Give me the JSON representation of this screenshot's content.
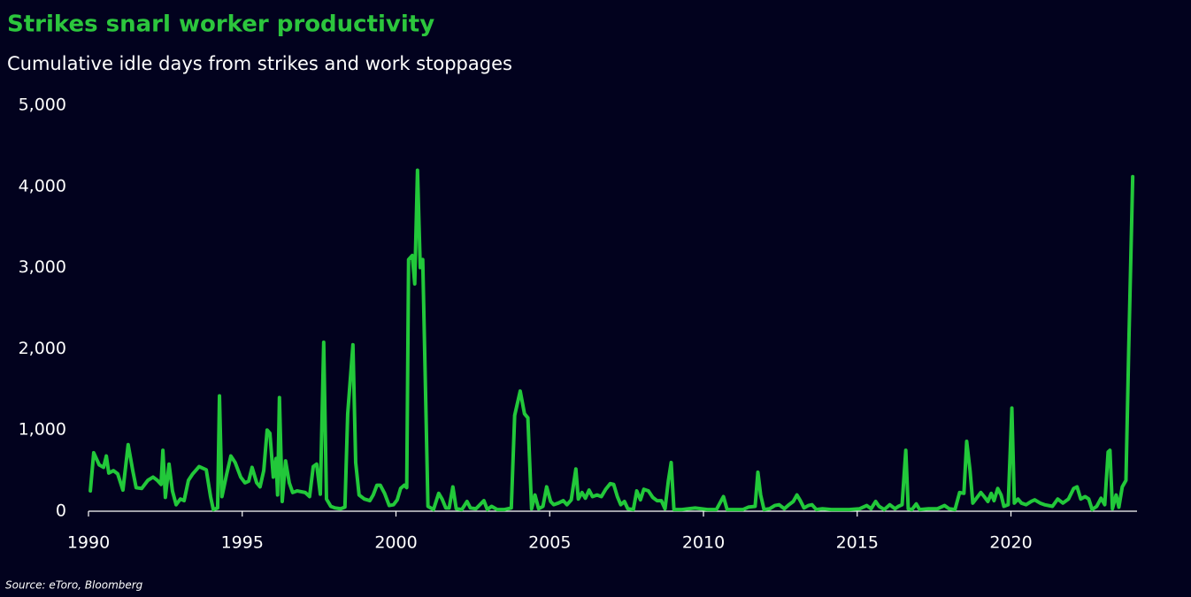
{
  "chart_data": {
    "type": "line",
    "title": "Strikes snarl worker productivity",
    "subtitle": "Cumulative idle days from strikes and work stoppages",
    "source": "Source: eToro, Bloomberg",
    "xlim": [
      1990,
      2024.1
    ],
    "xticks": [
      1990,
      1995,
      2000,
      2005,
      2010,
      2015,
      2020
    ],
    "ylim": [
      0,
      5000
    ],
    "yticks": [
      0,
      {
        "value": 1000,
        "label": "1,000"
      },
      {
        "value": 2000,
        "label": "2,000"
      },
      {
        "value": 3000,
        "label": "3,000"
      },
      {
        "value": 4000,
        "label": "4,000"
      },
      {
        "value": 5000,
        "label": "5,000"
      }
    ],
    "grid": false,
    "x": [
      1990.06,
      1990.17,
      1990.35,
      1990.49,
      1990.58,
      1990.66,
      1990.81,
      1990.95,
      1991.12,
      1991.29,
      1991.44,
      1991.55,
      1991.73,
      1991.93,
      1992.1,
      1992.24,
      1992.36,
      1992.42,
      1992.5,
      1992.62,
      1992.73,
      1992.85,
      1992.99,
      1993.11,
      1993.25,
      1993.39,
      1993.6,
      1993.83,
      1993.97,
      1994.06,
      1994.2,
      1994.26,
      1994.34,
      1994.49,
      1994.63,
      1994.77,
      1994.95,
      1995.09,
      1995.21,
      1995.32,
      1995.47,
      1995.58,
      1995.7,
      1995.81,
      1995.9,
      1996.01,
      1996.1,
      1996.15,
      1996.21,
      1996.3,
      1996.41,
      1996.53,
      1996.64,
      1996.79,
      1997.05,
      1997.19,
      1997.31,
      1997.42,
      1997.54,
      1997.65,
      1997.74,
      1997.88,
      1998.02,
      1998.2,
      1998.34,
      1998.43,
      1998.6,
      1998.69,
      1998.8,
      1998.97,
      1999.15,
      1999.26,
      1999.38,
      1999.49,
      1999.63,
      1999.78,
      1999.92,
      2000.04,
      2000.15,
      2000.27,
      2000.35,
      2000.41,
      2000.53,
      2000.61,
      2000.7,
      2000.79,
      2000.87,
      2000.96,
      2001.04,
      2001.22,
      2001.39,
      2001.5,
      2001.62,
      2001.73,
      2001.85,
      2001.96,
      2002.14,
      2002.31,
      2002.42,
      2002.6,
      2002.86,
      2002.97,
      2003.11,
      2003.29,
      2003.52,
      2003.75,
      2003.86,
      2004.04,
      2004.18,
      2004.29,
      2004.41,
      2004.52,
      2004.64,
      2004.78,
      2004.9,
      2005.03,
      2005.13,
      2005.28,
      2005.44,
      2005.56,
      2005.7,
      2005.85,
      2005.93,
      2006.05,
      2006.16,
      2006.28,
      2006.39,
      2006.54,
      2006.68,
      2006.82,
      2006.97,
      2007.08,
      2007.2,
      2007.31,
      2007.43,
      2007.54,
      2007.72,
      2007.83,
      2007.95,
      2008.06,
      2008.21,
      2008.35,
      2008.49,
      2008.63,
      2008.75,
      2008.86,
      2008.95,
      2009.04,
      2009.3,
      2009.73,
      2010.13,
      2010.42,
      2010.65,
      2010.77,
      2010.99,
      2011.28,
      2011.46,
      2011.68,
      2011.77,
      2011.86,
      2011.97,
      2012.15,
      2012.32,
      2012.46,
      2012.63,
      2012.78,
      2012.92,
      2013.04,
      2013.15,
      2013.27,
      2013.41,
      2013.53,
      2013.67,
      2013.87,
      2014.16,
      2014.74,
      2015.08,
      2015.31,
      2015.45,
      2015.6,
      2015.71,
      2015.88,
      2016.06,
      2016.23,
      2016.34,
      2016.46,
      2016.58,
      2016.66,
      2016.78,
      2016.92,
      2017.03,
      2017.32,
      2017.61,
      2017.84,
      2017.99,
      2018.18,
      2018.33,
      2018.47,
      2018.56,
      2018.67,
      2018.76,
      2018.88,
      2019.02,
      2019.13,
      2019.25,
      2019.36,
      2019.45,
      2019.57,
      2019.68,
      2019.77,
      2019.91,
      2020.03,
      2020.11,
      2020.23,
      2020.34,
      2020.49,
      2020.66,
      2020.77,
      2020.95,
      2021.09,
      2021.35,
      2021.52,
      2021.69,
      2021.87,
      2022.04,
      2022.15,
      2022.27,
      2022.41,
      2022.53,
      2022.64,
      2022.79,
      2022.93,
      2023.05,
      2023.16,
      2023.22,
      2023.3,
      2023.42,
      2023.51,
      2023.62,
      2023.74,
      2023.83,
      2023.96
    ],
    "series": [
      {
        "name": "Idle days",
        "color": "#22c83a",
        "values": [
          250,
          720,
          570,
          540,
          680,
          470,
          500,
          460,
          260,
          820,
          500,
          290,
          280,
          380,
          420,
          380,
          330,
          750,
          170,
          580,
          250,
          80,
          150,
          130,
          380,
          460,
          550,
          510,
          180,
          20,
          40,
          1420,
          180,
          450,
          680,
          600,
          420,
          350,
          370,
          540,
          350,
          300,
          500,
          1000,
          960,
          420,
          650,
          200,
          1400,
          120,
          620,
          350,
          230,
          250,
          230,
          180,
          550,
          580,
          210,
          2080,
          150,
          60,
          40,
          30,
          50,
          1200,
          2050,
          600,
          200,
          150,
          130,
          200,
          320,
          320,
          220,
          70,
          80,
          140,
          280,
          320,
          290,
          3100,
          3150,
          2800,
          4200,
          3000,
          3100,
          1500,
          60,
          20,
          220,
          150,
          40,
          40,
          300,
          30,
          20,
          120,
          40,
          30,
          130,
          20,
          60,
          20,
          20,
          40,
          1180,
          1480,
          1200,
          1150,
          30,
          200,
          30,
          60,
          300,
          120,
          80,
          100,
          130,
          80,
          140,
          520,
          150,
          230,
          160,
          260,
          180,
          200,
          180,
          270,
          340,
          330,
          180,
          80,
          120,
          30,
          20,
          250,
          140,
          270,
          250,
          170,
          130,
          130,
          30,
          380,
          600,
          20,
          20,
          40,
          20,
          20,
          180,
          20,
          20,
          20,
          50,
          60,
          480,
          200,
          20,
          30,
          70,
          80,
          30,
          80,
          120,
          200,
          130,
          40,
          70,
          80,
          20,
          30,
          20,
          20,
          30,
          70,
          30,
          120,
          60,
          20,
          80,
          30,
          60,
          80,
          750,
          30,
          20,
          90,
          20,
          30,
          30,
          70,
          30,
          20,
          230,
          220,
          860,
          500,
          100,
          160,
          230,
          180,
          120,
          220,
          130,
          280,
          200,
          60,
          80,
          1270,
          100,
          150,
          100,
          80,
          120,
          140,
          100,
          80,
          60,
          150,
          100,
          150,
          280,
          300,
          150,
          180,
          150,
          20,
          60,
          160,
          80,
          730,
          750,
          30,
          200,
          50,
          300,
          380,
          2000,
          4120
        ]
      }
    ]
  }
}
